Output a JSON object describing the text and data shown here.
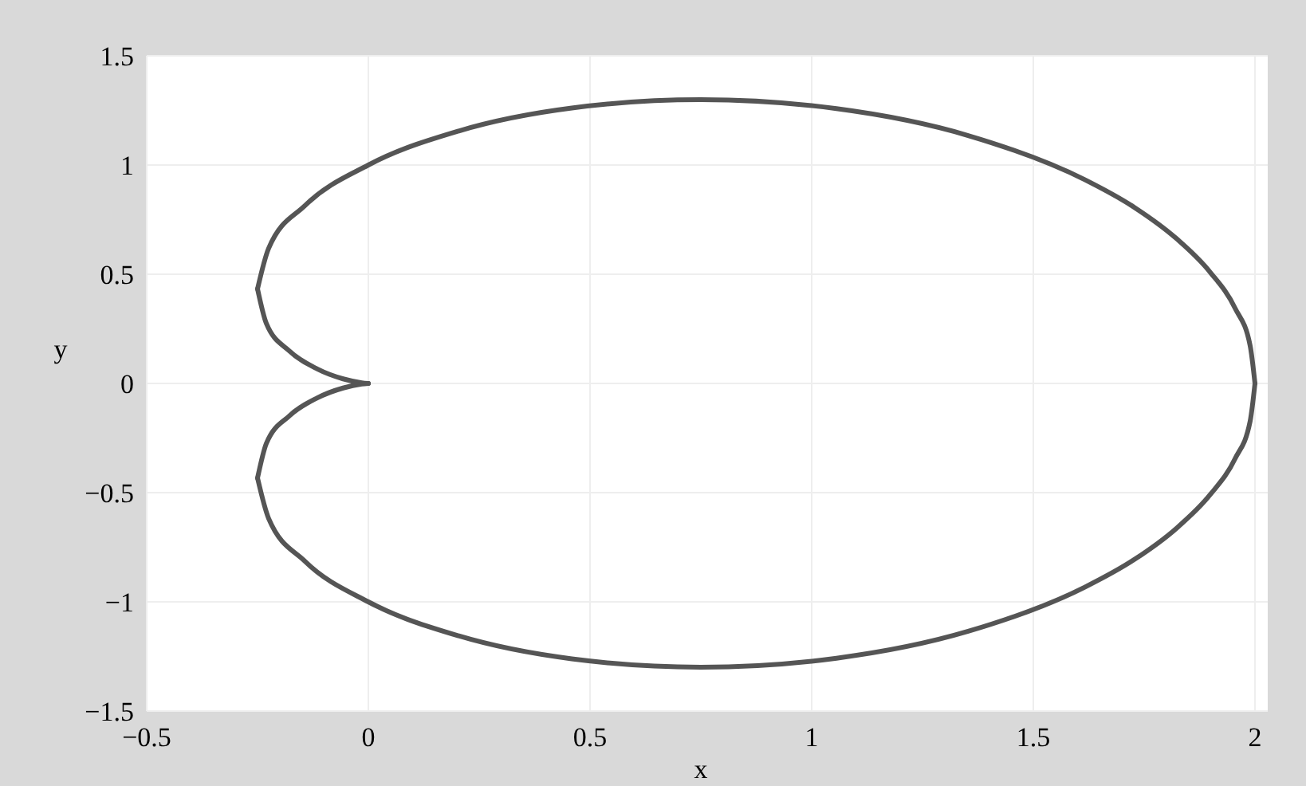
{
  "chart_data": {
    "type": "line",
    "xlabel": "x",
    "ylabel": "y",
    "xlim": [
      -0.5,
      2
    ],
    "ylim": [
      -1.5,
      1.5
    ],
    "xticks": [
      -0.5,
      0,
      0.5,
      1,
      1.5,
      2
    ],
    "yticks": [
      -1.5,
      -1,
      -0.5,
      0,
      0.5,
      1,
      1.5
    ],
    "grid": true,
    "marker": "none",
    "line_style": "solid",
    "series": [
      {
        "color": "#555555",
        "x": [
          -0.25,
          -0.225,
          -0.143,
          0,
          0.204,
          0.459,
          0.75,
          1.056,
          1.353,
          1.616,
          1.728,
          1.823,
          1.899,
          1.955,
          1.989,
          2
        ],
        "values": [
          0.433,
          0.618,
          0.814,
          1,
          1.156,
          1.261,
          1.299,
          1.258,
          1.135,
          0.933,
          0.806,
          0.663,
          0.509,
          0.345,
          0.174,
          0
        ]
      },
      {
        "color": "#555555",
        "x": [
          -0.25,
          -0.23,
          -0.179,
          -0.116,
          -0.057,
          -0.015,
          0
        ],
        "values": [
          0.433,
          0.274,
          0.15,
          0.067,
          0.021,
          0.003,
          0
        ]
      },
      {
        "color": "#555555",
        "x": [
          -0.25,
          -0.23,
          -0.179,
          -0.116,
          -0.057,
          -0.015,
          0
        ],
        "values": [
          -0.433,
          -0.274,
          -0.15,
          -0.067,
          -0.021,
          -0.003,
          0
        ]
      },
      {
        "color": "#555555",
        "x": [
          -0.25,
          -0.225,
          -0.143,
          0,
          0.204,
          0.459,
          0.75,
          1.056,
          1.353,
          1.616,
          1.728,
          1.823,
          1.899,
          1.955,
          1.989,
          2
        ],
        "values": [
          -0.433,
          -0.618,
          -0.814,
          -1,
          -1.156,
          -1.261,
          -1.299,
          -1.258,
          -1.135,
          -0.933,
          -0.806,
          -0.663,
          -0.509,
          -0.345,
          -0.174,
          0
        ]
      }
    ]
  }
}
